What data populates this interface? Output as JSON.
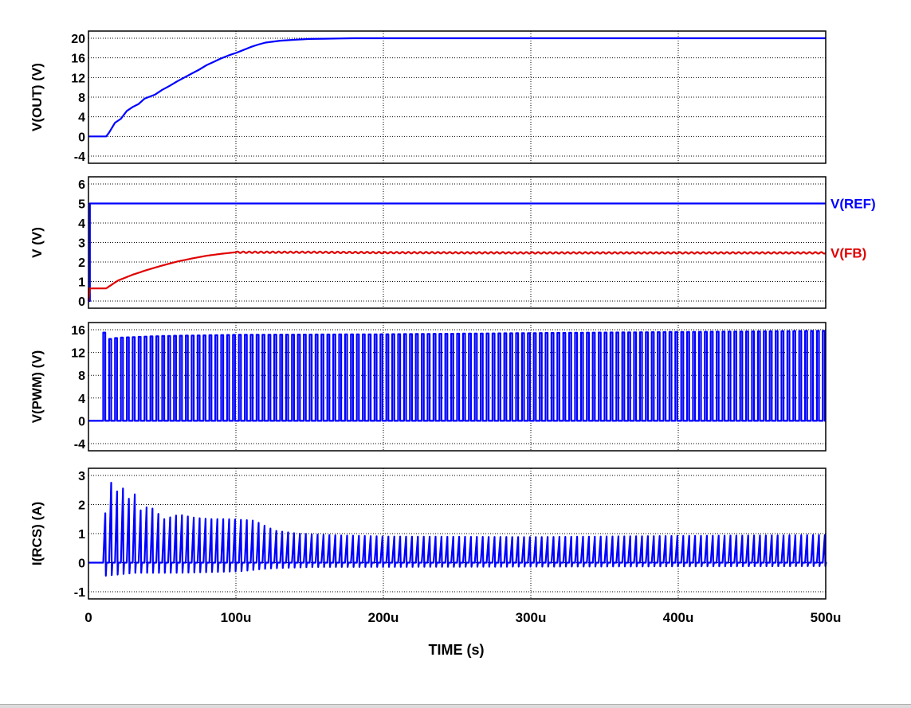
{
  "chart_data": [
    {
      "type": "line",
      "ylabel": "V(OUT)  (V)",
      "ylim": [
        -4,
        20
      ],
      "yticks": [
        -4,
        0,
        4,
        8,
        12,
        16,
        20
      ],
      "xlim": [
        0,
        500
      ],
      "grid": true,
      "series": [
        {
          "color": "#0000ff",
          "x": [
            0,
            12,
            14,
            18,
            22,
            26,
            30,
            34,
            38,
            45,
            50,
            55,
            60,
            65,
            70,
            75,
            80,
            85,
            90,
            95,
            100,
            105,
            110,
            115,
            120,
            130,
            140,
            150,
            160,
            170,
            180,
            200,
            220,
            250,
            300,
            400,
            500
          ],
          "y": [
            0,
            0,
            0.8,
            2.8,
            3.6,
            5.2,
            6.0,
            6.6,
            7.7,
            8.5,
            9.5,
            10.3,
            11.2,
            12.0,
            12.8,
            13.6,
            14.5,
            15.2,
            15.9,
            16.5,
            17.0,
            17.6,
            18.2,
            18.7,
            19.1,
            19.5,
            19.7,
            19.85,
            19.9,
            19.95,
            20.0,
            20.0,
            20.0,
            20.0,
            20.0,
            20.0,
            20.0
          ]
        }
      ]
    },
    {
      "type": "line",
      "ylabel": "V  (V)",
      "ylim": [
        0,
        6
      ],
      "yticks": [
        0,
        1,
        2,
        3,
        4,
        5,
        6
      ],
      "xlim": [
        0,
        500
      ],
      "grid": true,
      "series": [
        {
          "name": "V(REF)",
          "color": "#0000ff",
          "x": [
            0,
            1,
            1,
            500
          ],
          "y": [
            0,
            0,
            5,
            5
          ]
        },
        {
          "name": "V(FB)",
          "color": "#e00000",
          "x": [
            0,
            1,
            12,
            20,
            30,
            40,
            50,
            60,
            70,
            80,
            90,
            100,
            110,
            150,
            200,
            300,
            400,
            500
          ],
          "y": [
            0,
            0.65,
            0.65,
            1.05,
            1.35,
            1.6,
            1.82,
            2.02,
            2.18,
            2.32,
            2.42,
            2.5,
            2.5,
            2.5,
            2.48,
            2.47,
            2.47,
            2.47
          ],
          "ripple": 0.04
        }
      ]
    },
    {
      "type": "line",
      "ylabel": "V(PWM)  (V)",
      "ylim": [
        -4,
        16
      ],
      "yticks": [
        -4,
        0,
        4,
        8,
        12,
        16
      ],
      "xlim": [
        0,
        500
      ],
      "grid": true,
      "series": [
        {
          "color": "#0000ff",
          "pulse_period": 4,
          "pulse_start": 10,
          "pulse_low": 0,
          "peak_x": [
            10,
            12,
            20,
            50,
            100,
            200,
            300,
            400,
            500
          ],
          "peak_y": [
            15.5,
            14.3,
            14.6,
            14.9,
            15.1,
            15.2,
            15.4,
            15.6,
            15.8
          ]
        }
      ]
    },
    {
      "type": "line",
      "ylabel": "I(RCS)  (A)",
      "xlabel": "TIME  (s)",
      "ylim": [
        -1,
        3
      ],
      "yticks": [
        -1,
        0,
        1,
        2,
        3
      ],
      "xlim": [
        0,
        500
      ],
      "xticks": [
        "0",
        "100u",
        "200u",
        "300u",
        "400u",
        "500u"
      ],
      "grid": true,
      "series": [
        {
          "color": "#0000ff",
          "pulse_period": 4,
          "pulse_start": 10,
          "baseline": 0,
          "peak_x": [
            10,
            14,
            18,
            22,
            26,
            30,
            34,
            40,
            50,
            60,
            70,
            80,
            90,
            100,
            110,
            115,
            125,
            140,
            160,
            200,
            300,
            400,
            500
          ],
          "peak_y": [
            1.7,
            2.75,
            2.45,
            2.55,
            2.2,
            2.35,
            1.8,
            1.95,
            1.5,
            1.65,
            1.55,
            1.5,
            1.5,
            1.48,
            1.45,
            1.35,
            1.1,
            1.0,
            0.95,
            0.9,
            0.88,
            0.92,
            0.95
          ],
          "trough_x": [
            10,
            30,
            60,
            100,
            120,
            150,
            500
          ],
          "trough_y": [
            -0.45,
            -0.35,
            -0.35,
            -0.3,
            -0.2,
            -0.15,
            -0.12
          ]
        }
      ]
    }
  ]
}
